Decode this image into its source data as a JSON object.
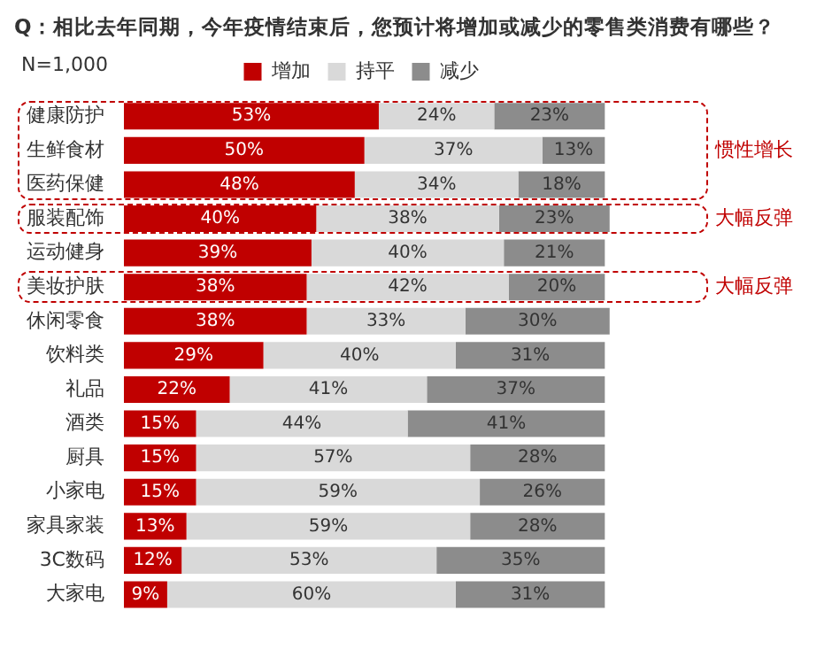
{
  "chart_data": {
    "type": "bar",
    "orientation": "horizontal",
    "stacked": true,
    "title": "Q：相比去年同期，今年疫情结束后，您预计将增加或减少的零售类消费有哪些？",
    "annotations": [
      "N=1,000",
      "惯性增长",
      "大幅反弹",
      "大幅反弹"
    ],
    "categories": [
      "健康防护",
      "生鲜食材",
      "医药保健",
      "服装配饰",
      "运动健身",
      "美妆护肤",
      "休闲零食",
      "饮料类",
      "礼品",
      "酒类",
      "厨具",
      "小家电",
      "家具家装",
      "3C数码",
      "大家电"
    ],
    "series": [
      {
        "name": "增加",
        "color": "#c00000",
        "values": [
          53,
          50,
          48,
          40,
          39,
          38,
          38,
          29,
          22,
          15,
          15,
          15,
          13,
          12,
          9
        ],
        "value_labels": [
          "53%",
          "50%",
          "48%",
          "40%",
          "39%",
          "38%",
          "38%",
          "29%",
          "22%",
          "15%",
          "15%",
          "15%",
          "13%",
          "12%",
          "9%"
        ]
      },
      {
        "name": "持平",
        "color": "#d9d9d9",
        "values": [
          24,
          37,
          34,
          38,
          40,
          42,
          33,
          40,
          41,
          44,
          57,
          59,
          59,
          53,
          60
        ],
        "value_labels": [
          "24%",
          "37%",
          "34%",
          "38%",
          "40%",
          "42%",
          "33%",
          "40%",
          "41%",
          "44%",
          "57%",
          "59%",
          "59%",
          "53%",
          "60%"
        ]
      },
      {
        "name": "减少",
        "color": "#8c8c8c",
        "values": [
          23,
          13,
          18,
          23,
          21,
          20,
          30,
          31,
          37,
          41,
          28,
          26,
          28,
          35,
          31
        ],
        "value_labels": [
          "23%",
          "13%",
          "18%",
          "23%",
          "21%",
          "20%",
          "30%",
          "31%",
          "37%",
          "41%",
          "28%",
          "26%",
          "28%",
          "35%",
          "31%"
        ]
      }
    ],
    "legend": "top",
    "tick_labels": "y"
  }
}
